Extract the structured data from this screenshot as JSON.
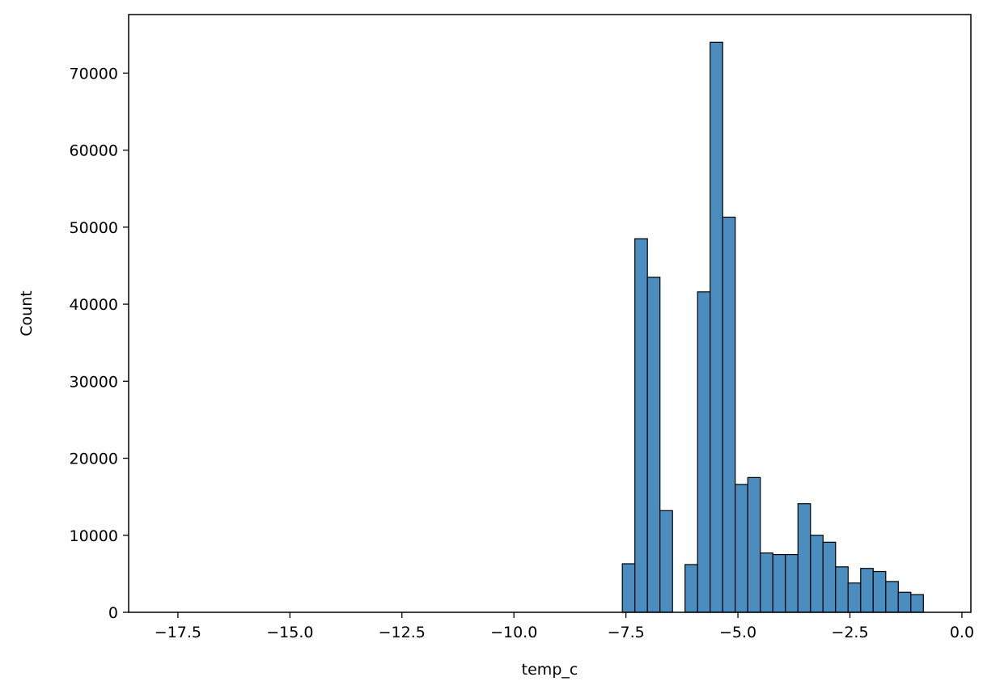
{
  "chart_data": {
    "type": "bar",
    "subtype": "histogram",
    "xlabel": "temp_c",
    "ylabel": "Count",
    "xlim": [
      -18.6,
      0.2
    ],
    "ylim": [
      0,
      77600
    ],
    "xticks": [
      -17.5,
      -15.0,
      -12.5,
      -10.0,
      -7.5,
      -5.0,
      -2.5,
      0.0
    ],
    "xtick_labels": [
      "−17.5",
      "−15.0",
      "−12.5",
      "−10.0",
      "−7.5",
      "−5.0",
      "−2.5",
      "0.0"
    ],
    "yticks": [
      0,
      10000,
      20000,
      30000,
      40000,
      50000,
      60000,
      70000
    ],
    "ytick_labels": [
      "0",
      "10000",
      "20000",
      "30000",
      "40000",
      "50000",
      "60000",
      "70000"
    ],
    "bin_width": 0.28,
    "bins": [
      {
        "x0": -7.58,
        "count": 6300
      },
      {
        "x0": -7.3,
        "count": 48500
      },
      {
        "x0": -7.02,
        "count": 43500
      },
      {
        "x0": -6.74,
        "count": 13200
      },
      {
        "x0": -6.18,
        "count": 6200
      },
      {
        "x0": -5.9,
        "count": 41600
      },
      {
        "x0": -5.62,
        "count": 74000
      },
      {
        "x0": -5.34,
        "count": 51300
      },
      {
        "x0": -5.06,
        "count": 16600
      },
      {
        "x0": -4.78,
        "count": 17500
      },
      {
        "x0": -4.5,
        "count": 7700
      },
      {
        "x0": -4.22,
        "count": 7500
      },
      {
        "x0": -3.94,
        "count": 7500
      },
      {
        "x0": -3.66,
        "count": 14100
      },
      {
        "x0": -3.38,
        "count": 10000
      },
      {
        "x0": -3.1,
        "count": 9100
      },
      {
        "x0": -2.82,
        "count": 5900
      },
      {
        "x0": -2.54,
        "count": 3800
      },
      {
        "x0": -2.26,
        "count": 5700
      },
      {
        "x0": -1.98,
        "count": 5300
      },
      {
        "x0": -1.7,
        "count": 4000
      },
      {
        "x0": -1.42,
        "count": 2600
      },
      {
        "x0": -1.14,
        "count": 2300
      }
    ],
    "bar_color": "#4c8dc0",
    "bar_edge_color": "#000000",
    "grid": false,
    "legend": "none"
  }
}
